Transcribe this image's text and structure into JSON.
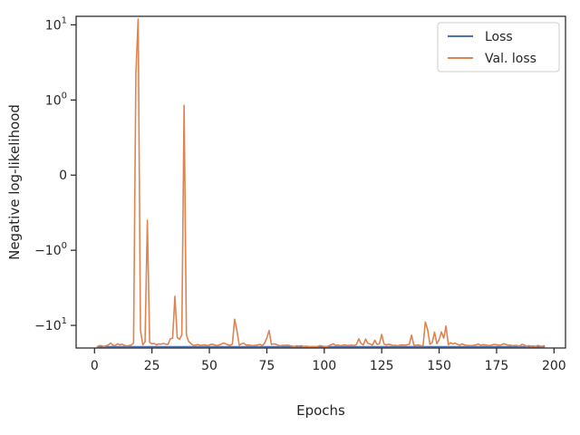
{
  "chart_data": {
    "type": "line",
    "xlabel": "Epochs",
    "ylabel": "Negative log-likelihood",
    "y_scale": "symlog",
    "xlim": [
      -8,
      205
    ],
    "ylim": [
      -20,
      13
    ],
    "x_ticks": [
      0,
      25,
      50,
      75,
      100,
      125,
      150,
      175,
      200
    ],
    "y_ticks": [
      {
        "value": 10,
        "base": "10",
        "exp": "1",
        "sign": ""
      },
      {
        "value": 1,
        "base": "10",
        "exp": "0",
        "sign": ""
      },
      {
        "value": 0,
        "plain": "0"
      },
      {
        "value": -1,
        "base": "10",
        "exp": "0",
        "sign": "−"
      },
      {
        "value": -10,
        "base": "10",
        "exp": "1",
        "sign": "−"
      }
    ],
    "grid": false,
    "legend_position": "top-right",
    "colors": {
      "loss": "#4c72b0",
      "val_loss": "#dd8452",
      "axes": "#262626"
    },
    "series": [
      {
        "name": "Loss",
        "color": "#4c72b0",
        "x": [
          1,
          196
        ],
        "y": [
          -19.2,
          -19.2
        ]
      },
      {
        "name": "Val. loss",
        "color": "#dd8452",
        "x": [
          1,
          2,
          3,
          4,
          5,
          6,
          7,
          8,
          9,
          10,
          11,
          12,
          13,
          14,
          15,
          16,
          17,
          18,
          19,
          20,
          21,
          22,
          23,
          24,
          25,
          26,
          27,
          28,
          29,
          30,
          31,
          32,
          33,
          34,
          35,
          36,
          37,
          38,
          39,
          40,
          41,
          42,
          43,
          44,
          45,
          46,
          47,
          48,
          49,
          50,
          51,
          52,
          53,
          54,
          55,
          56,
          57,
          58,
          59,
          60,
          61,
          62,
          63,
          64,
          65,
          66,
          67,
          68,
          69,
          70,
          71,
          72,
          73,
          74,
          75,
          76,
          77,
          78,
          79,
          80,
          81,
          82,
          83,
          84,
          85,
          86,
          87,
          88,
          89,
          90,
          91,
          92,
          93,
          94,
          95,
          96,
          97,
          98,
          99,
          100,
          101,
          102,
          103,
          104,
          105,
          106,
          107,
          108,
          109,
          110,
          111,
          112,
          113,
          114,
          115,
          116,
          117,
          118,
          119,
          120,
          121,
          122,
          123,
          124,
          125,
          126,
          127,
          128,
          129,
          130,
          131,
          132,
          133,
          134,
          135,
          136,
          137,
          138,
          139,
          140,
          141,
          142,
          143,
          144,
          145,
          146,
          147,
          148,
          149,
          150,
          151,
          152,
          153,
          154,
          155,
          156,
          157,
          158,
          159,
          160,
          161,
          162,
          163,
          164,
          165,
          166,
          167,
          168,
          169,
          170,
          171,
          172,
          173,
          174,
          175,
          176,
          177,
          178,
          179,
          180,
          181,
          182,
          183,
          184,
          185,
          186,
          187,
          188,
          189,
          190,
          191,
          192,
          193,
          194,
          195,
          196
        ],
        "y": [
          -19.4,
          -18.6,
          -18.6,
          -19.1,
          -18.7,
          -18.2,
          -17.2,
          -18.3,
          -18.6,
          -17.6,
          -18.2,
          -17.8,
          -18.4,
          -18.8,
          -18.6,
          -18.2,
          -17.3,
          2.2,
          12.0,
          -11.4,
          -18.1,
          -16.6,
          -0.6,
          -16.8,
          -17.6,
          -17.4,
          -18.2,
          -17.6,
          -17.8,
          -17.4,
          -17.8,
          -17.9,
          -15.1,
          -14.8,
          -4.1,
          -14.5,
          -15.3,
          -13.4,
          0.93,
          -13.4,
          -16.4,
          -17.5,
          -18.4,
          -18.3,
          -18.0,
          -18.4,
          -18.3,
          -18.1,
          -18.6,
          -18.3,
          -17.8,
          -18.1,
          -18.6,
          -18.3,
          -17.9,
          -17.2,
          -17.5,
          -18.2,
          -18.4,
          -17.8,
          -8.3,
          -11.8,
          -18.3,
          -17.6,
          -17.3,
          -18.3,
          -18.2,
          -18.4,
          -18.6,
          -18.4,
          -18.2,
          -17.9,
          -18.6,
          -17.4,
          -14.7,
          -11.7,
          -17.9,
          -17.6,
          -17.8,
          -18.5,
          -18.7,
          -18.4,
          -18.5,
          -18.3,
          -18.6,
          -18.9,
          -19.1,
          -18.7,
          -18.9,
          -18.6,
          -19.2,
          -18.9,
          -19.1,
          -19.3,
          -19.2,
          -19.3,
          -19.2,
          -18.6,
          -18.8,
          -19.2,
          -19.1,
          -18.7,
          -18.1,
          -17.6,
          -18.5,
          -18.3,
          -18.6,
          -18.4,
          -18.2,
          -18.5,
          -18.4,
          -18.3,
          -18.6,
          -18.0,
          -15.1,
          -17.4,
          -18.2,
          -15.2,
          -17.4,
          -17.7,
          -18.3,
          -15.8,
          -17.9,
          -17.6,
          -13.2,
          -17.7,
          -18.2,
          -17.8,
          -18.1,
          -18.6,
          -18.4,
          -18.7,
          -18.3,
          -18.2,
          -18.3,
          -18.1,
          -17.9,
          -13.5,
          -18.3,
          -18.4,
          -18.2,
          -18.7,
          -18.6,
          -9.0,
          -11.4,
          -17.9,
          -16.9,
          -12.3,
          -17.5,
          -15.5,
          -12.2,
          -14.8,
          -10.2,
          -18.1,
          -17.0,
          -17.7,
          -17.2,
          -17.9,
          -18.3,
          -17.6,
          -18.2,
          -18.4,
          -18.5,
          -18.6,
          -18.4,
          -18.2,
          -17.7,
          -18.3,
          -18.1,
          -18.2,
          -18.4,
          -18.6,
          -18.2,
          -17.9,
          -18.1,
          -18.3,
          -18.2,
          -17.6,
          -17.8,
          -18.4,
          -18.3,
          -18.7,
          -18.4,
          -18.6,
          -18.9,
          -17.9,
          -18.2,
          -19.0,
          -18.6,
          -18.9,
          -18.8,
          -19.1,
          -18.5,
          -18.9,
          -19.0,
          -18.6
        ]
      }
    ]
  }
}
